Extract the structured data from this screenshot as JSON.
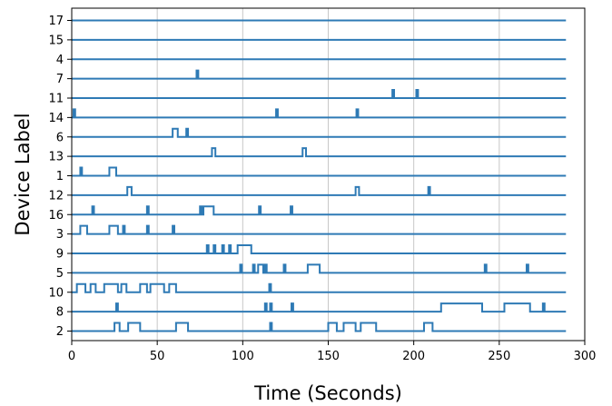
{
  "chart_data": {
    "type": "line",
    "xlabel": "Time (Seconds)",
    "ylabel": "Device Label",
    "xlim": [
      0,
      300
    ],
    "x_ticks": [
      0,
      50,
      100,
      150,
      200,
      250,
      300
    ],
    "x_end": 289,
    "grid": "vertical",
    "line_color": "#2e7ab5",
    "devices": [
      {
        "label": "17",
        "pulses": []
      },
      {
        "label": "15",
        "pulses": []
      },
      {
        "label": "4",
        "pulses": []
      },
      {
        "label": "7",
        "pulses": [
          [
            73,
            74
          ]
        ]
      },
      {
        "label": "11",
        "pulses": [
          [
            187.5,
            188.5
          ],
          [
            201.5,
            202.5
          ]
        ]
      },
      {
        "label": "14",
        "pulses": [
          [
            1,
            2
          ],
          [
            119.5,
            120.5
          ],
          [
            166.5,
            167.5
          ]
        ]
      },
      {
        "label": "6",
        "pulses": [
          [
            59,
            62
          ],
          [
            67,
            68
          ]
        ]
      },
      {
        "label": "13",
        "pulses": [
          [
            82,
            84
          ],
          [
            135,
            137
          ]
        ]
      },
      {
        "label": "1",
        "pulses": [
          [
            5,
            6
          ],
          [
            22,
            26
          ]
        ]
      },
      {
        "label": "12",
        "pulses": [
          [
            32.5,
            35
          ],
          [
            166,
            168
          ],
          [
            208.5,
            209.5
          ]
        ]
      },
      {
        "label": "16",
        "pulses": [
          [
            12,
            13
          ],
          [
            44,
            45
          ],
          [
            75,
            76
          ],
          [
            77,
            83
          ],
          [
            109.5,
            110.5
          ],
          [
            128,
            129
          ]
        ]
      },
      {
        "label": "3",
        "pulses": [
          [
            5,
            9
          ],
          [
            22,
            27
          ],
          [
            30,
            31
          ],
          [
            44,
            45
          ],
          [
            59,
            60
          ]
        ]
      },
      {
        "label": "9",
        "pulses": [
          [
            79,
            80
          ],
          [
            83,
            84
          ],
          [
            88,
            89
          ],
          [
            92,
            93
          ],
          [
            97,
            105
          ]
        ]
      },
      {
        "label": "5",
        "pulses": [
          [
            98.5,
            99.5
          ],
          [
            106,
            107
          ],
          [
            109,
            112
          ],
          [
            113,
            114
          ],
          [
            124,
            125
          ],
          [
            138,
            145
          ],
          [
            241.5,
            242.5
          ],
          [
            266,
            267
          ]
        ]
      },
      {
        "label": "10",
        "pulses": [
          [
            3,
            8
          ],
          [
            11,
            14
          ],
          [
            19,
            27
          ],
          [
            29,
            32
          ],
          [
            40,
            44
          ],
          [
            46,
            54
          ],
          [
            57,
            61
          ],
          [
            115.5,
            116.5
          ]
        ]
      },
      {
        "label": "8",
        "pulses": [
          [
            26,
            27
          ],
          [
            113,
            114
          ],
          [
            116,
            117
          ],
          [
            128.5,
            129.5
          ],
          [
            216,
            240
          ],
          [
            253,
            268
          ],
          [
            275.5,
            276.5
          ]
        ]
      },
      {
        "label": "2",
        "pulses": [
          [
            25,
            28
          ],
          [
            33,
            40
          ],
          [
            61,
            68
          ],
          [
            116,
            117
          ],
          [
            150,
            155
          ],
          [
            159,
            166
          ],
          [
            169,
            178
          ],
          [
            206,
            211
          ]
        ]
      }
    ]
  }
}
